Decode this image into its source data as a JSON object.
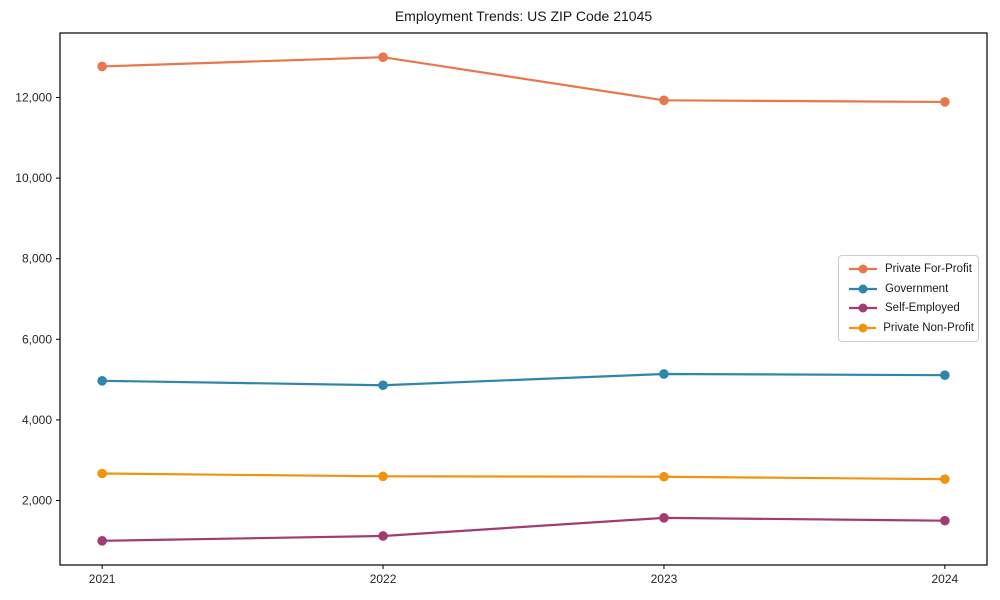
{
  "chart_data": {
    "type": "line",
    "title": "Employment Trends: US ZIP Code 21045",
    "xlabel": "",
    "ylabel": "",
    "x": [
      2021,
      2022,
      2023,
      2024
    ],
    "x_tick_labels": [
      "2021",
      "2022",
      "2023",
      "2024"
    ],
    "series": [
      {
        "name": "Private For-Profit",
        "color": "#E8784B",
        "values": [
          12770,
          13000,
          11930,
          11890
        ]
      },
      {
        "name": "Government",
        "color": "#2E86AB",
        "values": [
          4970,
          4860,
          5140,
          5110
        ]
      },
      {
        "name": "Self-Employed",
        "color": "#A23B72",
        "values": [
          1000,
          1120,
          1570,
          1500
        ]
      },
      {
        "name": "Private Non-Profit",
        "color": "#F0940F",
        "values": [
          2670,
          2600,
          2590,
          2530
        ]
      }
    ],
    "y_ticks": [
      2000,
      4000,
      6000,
      8000,
      10000,
      12000
    ],
    "y_tick_labels": [
      "2,000",
      "4,000",
      "6,000",
      "8,000",
      "10,000",
      "12,000"
    ],
    "xlim": [
      2020.85,
      2024.15
    ],
    "ylim": [
      400,
      13600
    ],
    "grid": false,
    "legend_position": "center-right",
    "axis_color": "#000000",
    "tick_label_color": "#262626"
  }
}
